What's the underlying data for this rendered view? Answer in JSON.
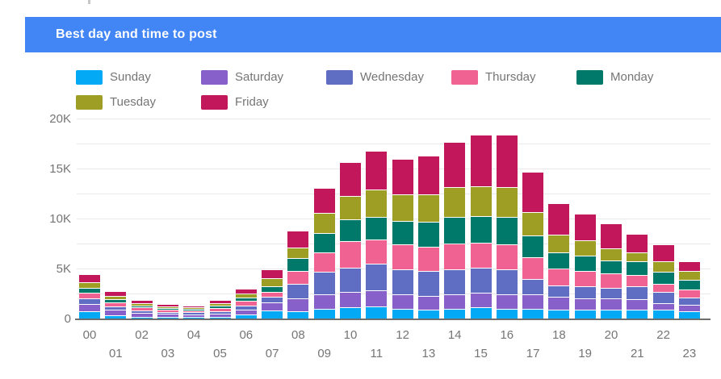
{
  "header": {
    "title": "Best day and time to post"
  },
  "colors": {
    "header_bg": "#4285F4",
    "header_text": "#ffffff",
    "axis_text": "#757575",
    "grid_line": "#e9e9e9",
    "axis_line": "#6e6e6e",
    "background": "#ffffff"
  },
  "chart_data": {
    "type": "bar",
    "stacked": true,
    "title": "Best day and time to post",
    "xlabel": "",
    "ylabel": "",
    "grid": true,
    "legend_position": "top-left",
    "x_label_layout": "two-row-staggered",
    "ylim": [
      0,
      20000
    ],
    "grid_interval": 2500,
    "ytick_values": [
      0,
      5000,
      10000,
      15000,
      20000
    ],
    "ytick_labels": [
      "0",
      "5K",
      "10K",
      "15K",
      "20K"
    ],
    "categories": [
      "00",
      "01",
      "02",
      "03",
      "04",
      "05",
      "06",
      "07",
      "08",
      "09",
      "10",
      "11",
      "12",
      "13",
      "14",
      "15",
      "16",
      "17",
      "18",
      "19",
      "20",
      "21",
      "22",
      "23"
    ],
    "series": [
      {
        "name": "Sunday",
        "color": "#03A9F4",
        "values": [
          700,
          350,
          200,
          160,
          140,
          180,
          400,
          800,
          750,
          1000,
          1100,
          1200,
          1000,
          850,
          950,
          1100,
          1000,
          950,
          900,
          850,
          850,
          850,
          850,
          750
        ]
      },
      {
        "name": "Saturday",
        "color": "#8760C9",
        "values": [
          750,
          500,
          350,
          300,
          270,
          300,
          500,
          800,
          1250,
          1450,
          1550,
          1650,
          1400,
          1400,
          1500,
          1500,
          1450,
          1500,
          1250,
          1200,
          1150,
          1100,
          700,
          650
        ]
      },
      {
        "name": "Wednesday",
        "color": "#5F6EC3",
        "values": [
          550,
          350,
          250,
          200,
          180,
          250,
          400,
          550,
          1500,
          2250,
          2400,
          2600,
          2500,
          2500,
          2450,
          2450,
          2500,
          1500,
          1150,
          1150,
          1100,
          1300,
          1150,
          700
        ]
      },
      {
        "name": "Thursday",
        "color": "#F06292",
        "values": [
          550,
          400,
          300,
          240,
          200,
          320,
          480,
          520,
          1300,
          1900,
          2700,
          2450,
          2500,
          2450,
          2600,
          2500,
          2500,
          2200,
          1700,
          1550,
          1400,
          1100,
          750,
          800
        ]
      },
      {
        "name": "Monday",
        "color": "#00796B",
        "values": [
          500,
          300,
          200,
          160,
          140,
          250,
          340,
          550,
          1250,
          1950,
          2200,
          2300,
          2400,
          2450,
          2650,
          2700,
          2750,
          2200,
          1650,
          1550,
          1300,
          1350,
          1250,
          1000
        ]
      },
      {
        "name": "Tuesday",
        "color": "#9E9D24",
        "values": [
          600,
          400,
          220,
          170,
          150,
          250,
          420,
          800,
          1050,
          2050,
          2300,
          2700,
          2600,
          2750,
          3000,
          3000,
          2950,
          2300,
          1750,
          1550,
          1250,
          950,
          1000,
          900
        ]
      },
      {
        "name": "Friday",
        "color": "#C2185B",
        "values": [
          800,
          450,
          330,
          220,
          180,
          300,
          460,
          880,
          1700,
          2500,
          3400,
          3900,
          3600,
          3900,
          4500,
          5150,
          5250,
          4000,
          3150,
          2650,
          2450,
          1850,
          1700,
          950
        ]
      }
    ]
  }
}
